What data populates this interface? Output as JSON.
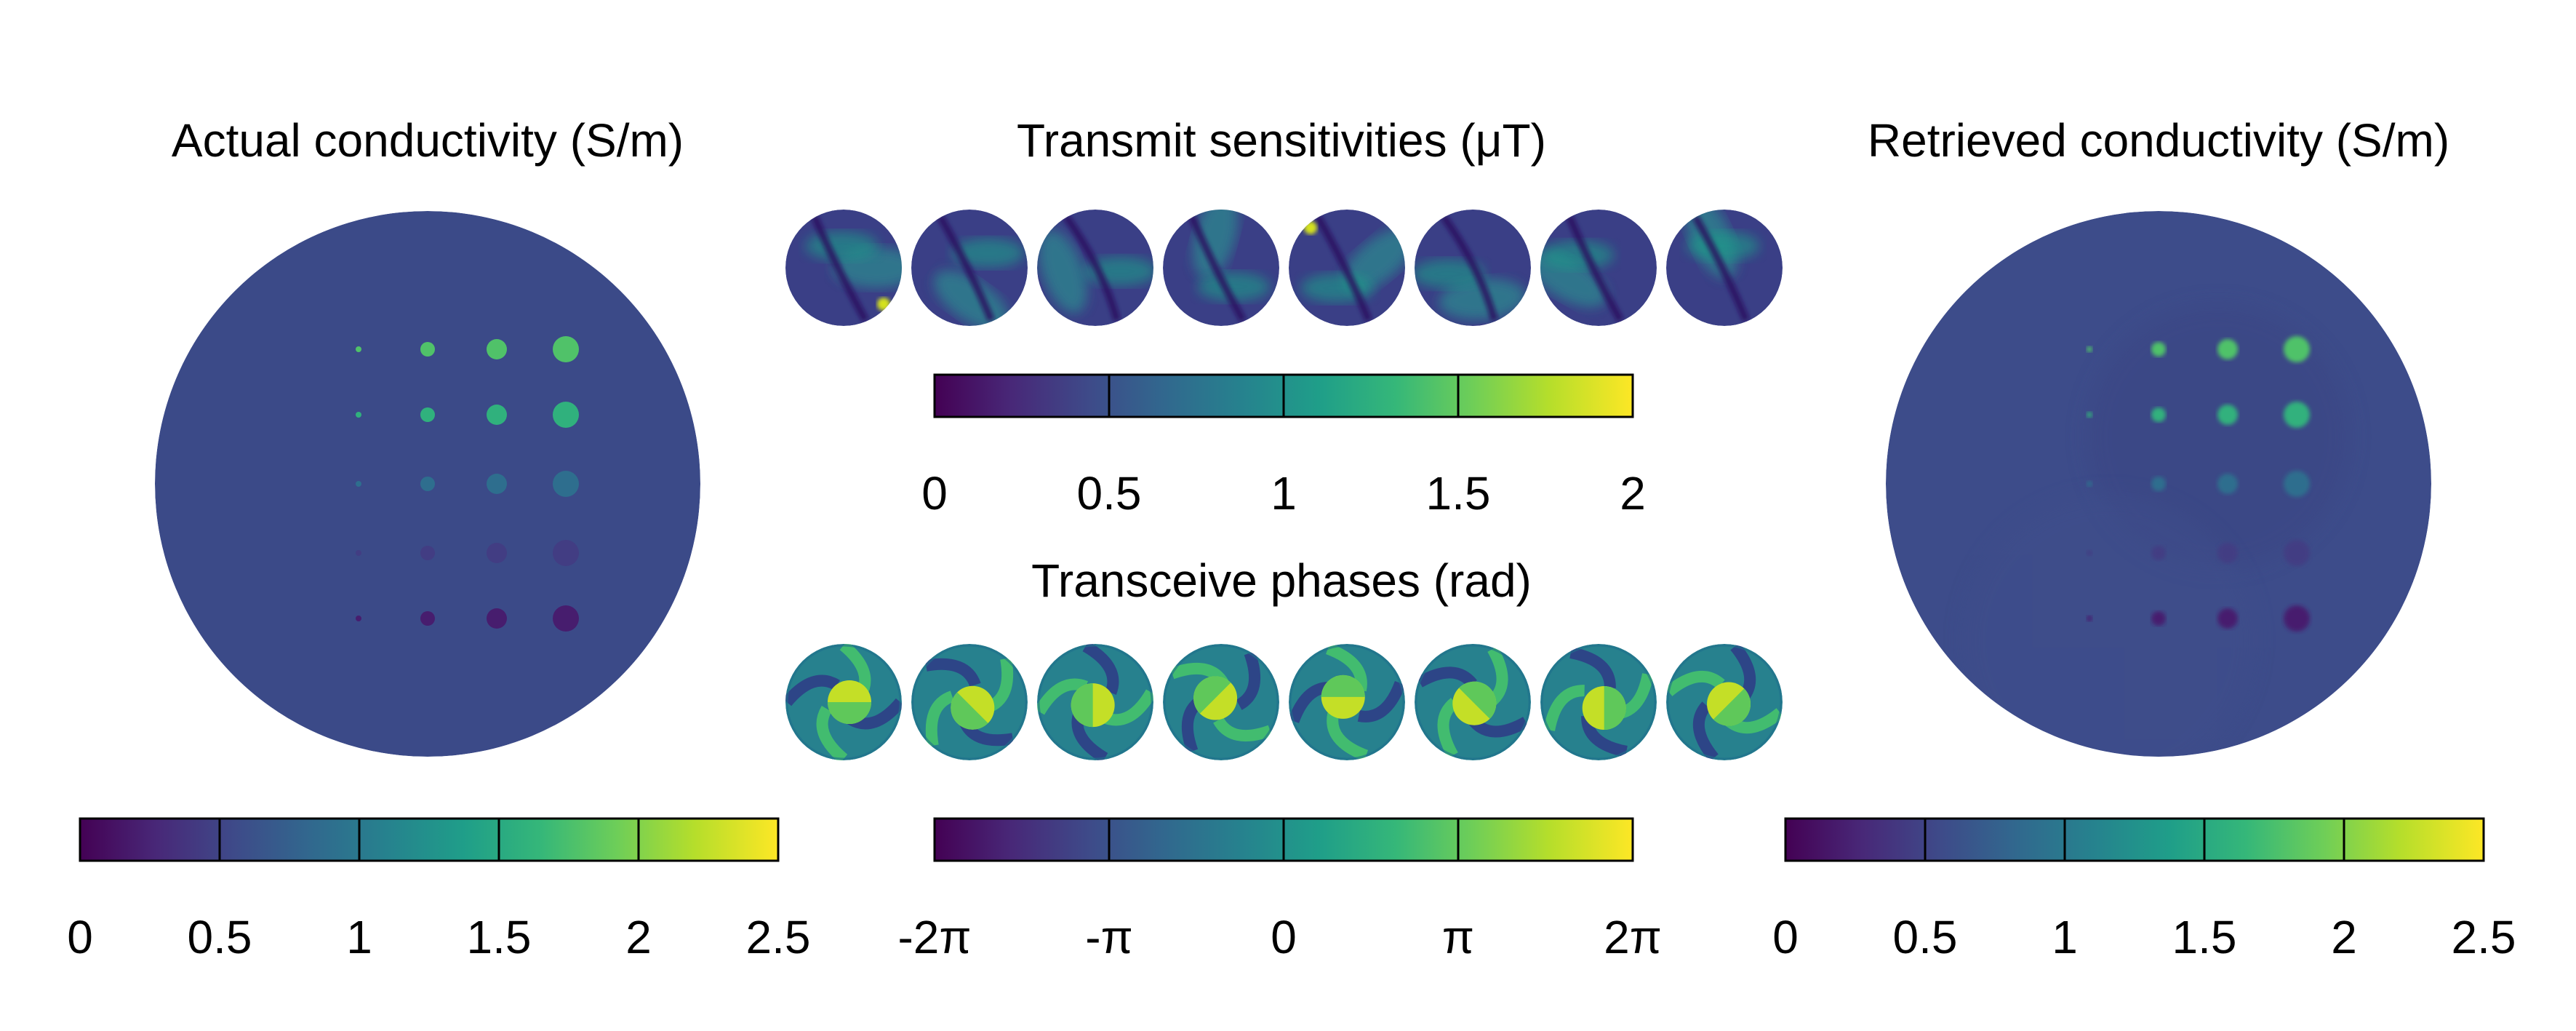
{
  "panels": {
    "left": {
      "title": "Actual conductivity (S/m)"
    },
    "top": {
      "title": "Transmit sensitivities (μT)"
    },
    "middle": {
      "title": "Transceive phases (rad)"
    },
    "right": {
      "title": "Retrieved conductivity (S/m)"
    }
  },
  "colorbars": {
    "actual": {
      "range": [
        0,
        2.5
      ],
      "ticks": [
        "0",
        "0.5",
        "1",
        "1.5",
        "2",
        "2.5"
      ]
    },
    "transmit": {
      "range": [
        0,
        2
      ],
      "ticks": [
        "0",
        "0.5",
        "1",
        "1.5",
        "2"
      ]
    },
    "phases": {
      "range": [
        -6.283,
        6.283
      ],
      "ticks": [
        "-2π",
        "-π",
        "0",
        "π",
        "2π"
      ]
    },
    "retrieved": {
      "range": [
        0,
        2.5
      ],
      "ticks": [
        "0",
        "0.5",
        "1",
        "1.5",
        "2",
        "2.5"
      ]
    }
  },
  "colormap": "viridis",
  "colors": {
    "viridis": [
      "#440154",
      "#482878",
      "#3e4a89",
      "#31688e",
      "#26828e",
      "#1f9e89",
      "#35b779",
      "#6ece58",
      "#b5de2b",
      "#fde725"
    ],
    "background_conductivity": "#3b4a88"
  },
  "sample_grid": {
    "rows": 5,
    "cols": 4,
    "row_conductivity": [
      1.8,
      1.6,
      0.9,
      0.45,
      0.2
    ]
  },
  "sensitivity_maps_count": 8,
  "phase_maps_count": 8
}
